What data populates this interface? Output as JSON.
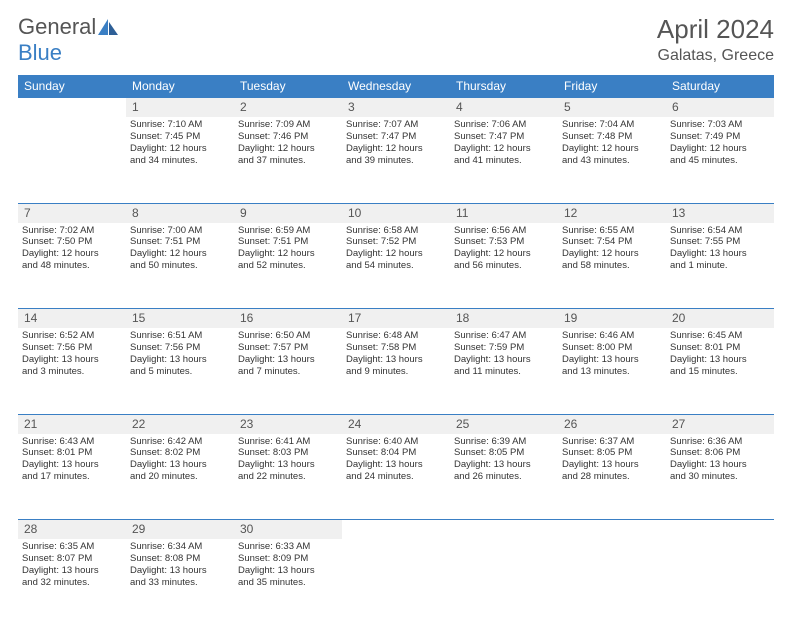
{
  "brand": {
    "part1": "General",
    "part2": "Blue"
  },
  "title": "April 2024",
  "location": "Galatas, Greece",
  "colors": {
    "header_bg": "#3a7fc4",
    "brand_blue": "#3a7fc4",
    "text_gray": "#555555",
    "row_bg": "#f0f0f0",
    "divider": "#3a7fc4"
  },
  "weekdays": [
    "Sunday",
    "Monday",
    "Tuesday",
    "Wednesday",
    "Thursday",
    "Friday",
    "Saturday"
  ],
  "weeks": [
    [
      null,
      {
        "n": "1",
        "sr": "Sunrise: 7:10 AM",
        "ss": "Sunset: 7:45 PM",
        "d1": "Daylight: 12 hours",
        "d2": "and 34 minutes."
      },
      {
        "n": "2",
        "sr": "Sunrise: 7:09 AM",
        "ss": "Sunset: 7:46 PM",
        "d1": "Daylight: 12 hours",
        "d2": "and 37 minutes."
      },
      {
        "n": "3",
        "sr": "Sunrise: 7:07 AM",
        "ss": "Sunset: 7:47 PM",
        "d1": "Daylight: 12 hours",
        "d2": "and 39 minutes."
      },
      {
        "n": "4",
        "sr": "Sunrise: 7:06 AM",
        "ss": "Sunset: 7:47 PM",
        "d1": "Daylight: 12 hours",
        "d2": "and 41 minutes."
      },
      {
        "n": "5",
        "sr": "Sunrise: 7:04 AM",
        "ss": "Sunset: 7:48 PM",
        "d1": "Daylight: 12 hours",
        "d2": "and 43 minutes."
      },
      {
        "n": "6",
        "sr": "Sunrise: 7:03 AM",
        "ss": "Sunset: 7:49 PM",
        "d1": "Daylight: 12 hours",
        "d2": "and 45 minutes."
      }
    ],
    [
      {
        "n": "7",
        "sr": "Sunrise: 7:02 AM",
        "ss": "Sunset: 7:50 PM",
        "d1": "Daylight: 12 hours",
        "d2": "and 48 minutes."
      },
      {
        "n": "8",
        "sr": "Sunrise: 7:00 AM",
        "ss": "Sunset: 7:51 PM",
        "d1": "Daylight: 12 hours",
        "d2": "and 50 minutes."
      },
      {
        "n": "9",
        "sr": "Sunrise: 6:59 AM",
        "ss": "Sunset: 7:51 PM",
        "d1": "Daylight: 12 hours",
        "d2": "and 52 minutes."
      },
      {
        "n": "10",
        "sr": "Sunrise: 6:58 AM",
        "ss": "Sunset: 7:52 PM",
        "d1": "Daylight: 12 hours",
        "d2": "and 54 minutes."
      },
      {
        "n": "11",
        "sr": "Sunrise: 6:56 AM",
        "ss": "Sunset: 7:53 PM",
        "d1": "Daylight: 12 hours",
        "d2": "and 56 minutes."
      },
      {
        "n": "12",
        "sr": "Sunrise: 6:55 AM",
        "ss": "Sunset: 7:54 PM",
        "d1": "Daylight: 12 hours",
        "d2": "and 58 minutes."
      },
      {
        "n": "13",
        "sr": "Sunrise: 6:54 AM",
        "ss": "Sunset: 7:55 PM",
        "d1": "Daylight: 13 hours",
        "d2": "and 1 minute."
      }
    ],
    [
      {
        "n": "14",
        "sr": "Sunrise: 6:52 AM",
        "ss": "Sunset: 7:56 PM",
        "d1": "Daylight: 13 hours",
        "d2": "and 3 minutes."
      },
      {
        "n": "15",
        "sr": "Sunrise: 6:51 AM",
        "ss": "Sunset: 7:56 PM",
        "d1": "Daylight: 13 hours",
        "d2": "and 5 minutes."
      },
      {
        "n": "16",
        "sr": "Sunrise: 6:50 AM",
        "ss": "Sunset: 7:57 PM",
        "d1": "Daylight: 13 hours",
        "d2": "and 7 minutes."
      },
      {
        "n": "17",
        "sr": "Sunrise: 6:48 AM",
        "ss": "Sunset: 7:58 PM",
        "d1": "Daylight: 13 hours",
        "d2": "and 9 minutes."
      },
      {
        "n": "18",
        "sr": "Sunrise: 6:47 AM",
        "ss": "Sunset: 7:59 PM",
        "d1": "Daylight: 13 hours",
        "d2": "and 11 minutes."
      },
      {
        "n": "19",
        "sr": "Sunrise: 6:46 AM",
        "ss": "Sunset: 8:00 PM",
        "d1": "Daylight: 13 hours",
        "d2": "and 13 minutes."
      },
      {
        "n": "20",
        "sr": "Sunrise: 6:45 AM",
        "ss": "Sunset: 8:01 PM",
        "d1": "Daylight: 13 hours",
        "d2": "and 15 minutes."
      }
    ],
    [
      {
        "n": "21",
        "sr": "Sunrise: 6:43 AM",
        "ss": "Sunset: 8:01 PM",
        "d1": "Daylight: 13 hours",
        "d2": "and 17 minutes."
      },
      {
        "n": "22",
        "sr": "Sunrise: 6:42 AM",
        "ss": "Sunset: 8:02 PM",
        "d1": "Daylight: 13 hours",
        "d2": "and 20 minutes."
      },
      {
        "n": "23",
        "sr": "Sunrise: 6:41 AM",
        "ss": "Sunset: 8:03 PM",
        "d1": "Daylight: 13 hours",
        "d2": "and 22 minutes."
      },
      {
        "n": "24",
        "sr": "Sunrise: 6:40 AM",
        "ss": "Sunset: 8:04 PM",
        "d1": "Daylight: 13 hours",
        "d2": "and 24 minutes."
      },
      {
        "n": "25",
        "sr": "Sunrise: 6:39 AM",
        "ss": "Sunset: 8:05 PM",
        "d1": "Daylight: 13 hours",
        "d2": "and 26 minutes."
      },
      {
        "n": "26",
        "sr": "Sunrise: 6:37 AM",
        "ss": "Sunset: 8:05 PM",
        "d1": "Daylight: 13 hours",
        "d2": "and 28 minutes."
      },
      {
        "n": "27",
        "sr": "Sunrise: 6:36 AM",
        "ss": "Sunset: 8:06 PM",
        "d1": "Daylight: 13 hours",
        "d2": "and 30 minutes."
      }
    ],
    [
      {
        "n": "28",
        "sr": "Sunrise: 6:35 AM",
        "ss": "Sunset: 8:07 PM",
        "d1": "Daylight: 13 hours",
        "d2": "and 32 minutes."
      },
      {
        "n": "29",
        "sr": "Sunrise: 6:34 AM",
        "ss": "Sunset: 8:08 PM",
        "d1": "Daylight: 13 hours",
        "d2": "and 33 minutes."
      },
      {
        "n": "30",
        "sr": "Sunrise: 6:33 AM",
        "ss": "Sunset: 8:09 PM",
        "d1": "Daylight: 13 hours",
        "d2": "and 35 minutes."
      },
      null,
      null,
      null,
      null
    ]
  ]
}
